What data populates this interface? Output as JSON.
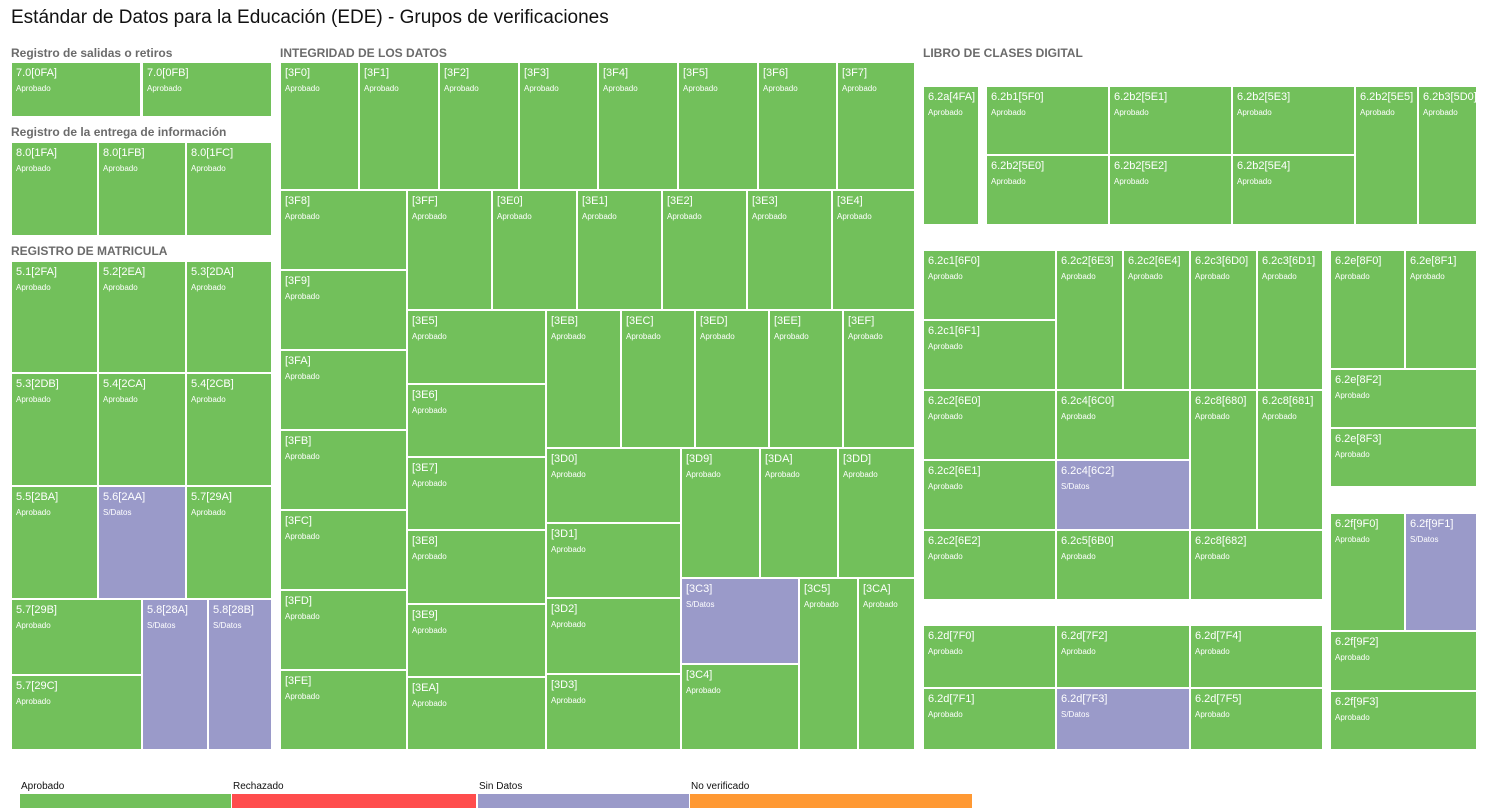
{
  "title": "Estándar de Datos para la Educación (EDE) - Grupos de verificaciones",
  "colors": {
    "Aprobado": "#72c05b",
    "Rechazado": "#ff4d4d",
    "Sin Datos": "#9a9ac9",
    "No verificado": "#ff9933"
  },
  "sections": {
    "salidas": "Registro de salidas o retiros",
    "entrega": "Registro de la entrega de información",
    "matricula": "REGISTRO DE MATRICULA",
    "integridad": "INTEGRIDAD DE LOS DATOS",
    "libro": "LIBRO DE CLASES DIGITAL"
  },
  "legend": [
    {
      "label": "Aprobado",
      "color": "#72c05b"
    },
    {
      "label": "Rechazado",
      "color": "#ff4d4d"
    },
    {
      "label": "Sin Datos",
      "color": "#9a9ac9"
    },
    {
      "label": "No verificado",
      "color": "#ff9933"
    }
  ],
  "chart_data": {
    "type": "treemap",
    "title": "Estándar de Datos para la Educación (EDE) - Grupos de verificaciones",
    "groups": [
      {
        "name": "Registro de salidas o retiros",
        "items": [
          {
            "id": "7.0[0FA]",
            "status": "Aprobado"
          },
          {
            "id": "7.0[0FB]",
            "status": "Aprobado"
          }
        ]
      },
      {
        "name": "Registro de la entrega de información",
        "items": [
          {
            "id": "8.0[1FA]",
            "status": "Aprobado"
          },
          {
            "id": "8.0[1FB]",
            "status": "Aprobado"
          },
          {
            "id": "8.0[1FC]",
            "status": "Aprobado"
          }
        ]
      },
      {
        "name": "REGISTRO DE MATRICULA",
        "items": [
          {
            "id": "5.1[2FA]",
            "status": "Aprobado"
          },
          {
            "id": "5.2[2EA]",
            "status": "Aprobado"
          },
          {
            "id": "5.3[2DA]",
            "status": "Aprobado"
          },
          {
            "id": "5.3[2DB]",
            "status": "Aprobado"
          },
          {
            "id": "5.4[2CA]",
            "status": "Aprobado"
          },
          {
            "id": "5.4[2CB]",
            "status": "Aprobado"
          },
          {
            "id": "5.5[2BA]",
            "status": "Aprobado"
          },
          {
            "id": "5.6[2AA]",
            "status": "S/Datos"
          },
          {
            "id": "5.7[29A]",
            "status": "Aprobado"
          },
          {
            "id": "5.7[29B]",
            "status": "Aprobado"
          },
          {
            "id": "5.8[28A]",
            "status": "S/Datos"
          },
          {
            "id": "5.8[28B]",
            "status": "S/Datos"
          },
          {
            "id": "5.7[29C]",
            "status": "Aprobado"
          }
        ]
      },
      {
        "name": "INTEGRIDAD DE LOS DATOS",
        "items": [
          {
            "id": "[3F0]",
            "status": "Aprobado"
          },
          {
            "id": "[3F1]",
            "status": "Aprobado"
          },
          {
            "id": "[3F2]",
            "status": "Aprobado"
          },
          {
            "id": "[3F3]",
            "status": "Aprobado"
          },
          {
            "id": "[3F4]",
            "status": "Aprobado"
          },
          {
            "id": "[3F5]",
            "status": "Aprobado"
          },
          {
            "id": "[3F6]",
            "status": "Aprobado"
          },
          {
            "id": "[3F7]",
            "status": "Aprobado"
          },
          {
            "id": "[3F8]",
            "status": "Aprobado"
          },
          {
            "id": "[3F9]",
            "status": "Aprobado"
          },
          {
            "id": "[3FA]",
            "status": "Aprobado"
          },
          {
            "id": "[3FB]",
            "status": "Aprobado"
          },
          {
            "id": "[3FC]",
            "status": "Aprobado"
          },
          {
            "id": "[3FD]",
            "status": "Aprobado"
          },
          {
            "id": "[3FE]",
            "status": "Aprobado"
          },
          {
            "id": "[3FF]",
            "status": "Aprobado"
          },
          {
            "id": "[3E0]",
            "status": "Aprobado"
          },
          {
            "id": "[3E1]",
            "status": "Aprobado"
          },
          {
            "id": "[3E2]",
            "status": "Aprobado"
          },
          {
            "id": "[3E3]",
            "status": "Aprobado"
          },
          {
            "id": "[3E4]",
            "status": "Aprobado"
          },
          {
            "id": "[3E5]",
            "status": "Aprobado"
          },
          {
            "id": "[3E6]",
            "status": "Aprobado"
          },
          {
            "id": "[3E7]",
            "status": "Aprobado"
          },
          {
            "id": "[3E8]",
            "status": "Aprobado"
          },
          {
            "id": "[3E9]",
            "status": "Aprobado"
          },
          {
            "id": "[3EA]",
            "status": "Aprobado"
          },
          {
            "id": "[3EB]",
            "status": "Aprobado"
          },
          {
            "id": "[3EC]",
            "status": "Aprobado"
          },
          {
            "id": "[3ED]",
            "status": "Aprobado"
          },
          {
            "id": "[3EE]",
            "status": "Aprobado"
          },
          {
            "id": "[3EF]",
            "status": "Aprobado"
          },
          {
            "id": "[3D0]",
            "status": "Aprobado"
          },
          {
            "id": "[3D1]",
            "status": "Aprobado"
          },
          {
            "id": "[3D2]",
            "status": "Aprobado"
          },
          {
            "id": "[3D3]",
            "status": "Aprobado"
          },
          {
            "id": "[3D9]",
            "status": "Aprobado"
          },
          {
            "id": "[3DA]",
            "status": "Aprobado"
          },
          {
            "id": "[3DD]",
            "status": "Aprobado"
          },
          {
            "id": "[3C3]",
            "status": "S/Datos"
          },
          {
            "id": "[3C4]",
            "status": "Aprobado"
          },
          {
            "id": "[3C5]",
            "status": "Aprobado"
          },
          {
            "id": "[3CA]",
            "status": "Aprobado"
          }
        ]
      },
      {
        "name": "LIBRO DE CLASES DIGITAL",
        "items": [
          {
            "id": "6.2a[4FA]",
            "status": "Aprobado"
          },
          {
            "id": "6.2b1[5F0]",
            "status": "Aprobado"
          },
          {
            "id": "6.2b2[5E1]",
            "status": "Aprobado"
          },
          {
            "id": "6.2b2[5E3]",
            "status": "Aprobado"
          },
          {
            "id": "6.2b2[5E5]",
            "status": "Aprobado"
          },
          {
            "id": "6.2b3[5D0]",
            "status": "Aprobado"
          },
          {
            "id": "6.2b2[5E0]",
            "status": "Aprobado"
          },
          {
            "id": "6.2b2[5E2]",
            "status": "Aprobado"
          },
          {
            "id": "6.2b2[5E4]",
            "status": "Aprobado"
          },
          {
            "id": "6.2c1[6F0]",
            "status": "Aprobado"
          },
          {
            "id": "6.2c1[6F1]",
            "status": "Aprobado"
          },
          {
            "id": "6.2c2[6E3]",
            "status": "Aprobado"
          },
          {
            "id": "6.2c2[6E4]",
            "status": "Aprobado"
          },
          {
            "id": "6.2c3[6D0]",
            "status": "Aprobado"
          },
          {
            "id": "6.2c3[6D1]",
            "status": "Aprobado"
          },
          {
            "id": "6.2c2[6E0]",
            "status": "Aprobado"
          },
          {
            "id": "6.2c4[6C0]",
            "status": "Aprobado"
          },
          {
            "id": "6.2c8[680]",
            "status": "Aprobado"
          },
          {
            "id": "6.2c8[681]",
            "status": "Aprobado"
          },
          {
            "id": "6.2c2[6E1]",
            "status": "Aprobado"
          },
          {
            "id": "6.2c4[6C2]",
            "status": "S/Datos"
          },
          {
            "id": "6.2c2[6E2]",
            "status": "Aprobado"
          },
          {
            "id": "6.2c5[6B0]",
            "status": "Aprobado"
          },
          {
            "id": "6.2c8[682]",
            "status": "Aprobado"
          },
          {
            "id": "6.2e[8F0]",
            "status": "Aprobado"
          },
          {
            "id": "6.2e[8F1]",
            "status": "Aprobado"
          },
          {
            "id": "6.2e[8F2]",
            "status": "Aprobado"
          },
          {
            "id": "6.2e[8F3]",
            "status": "Aprobado"
          },
          {
            "id": "6.2f[9F0]",
            "status": "Aprobado"
          },
          {
            "id": "6.2f[9F1]",
            "status": "S/Datos"
          },
          {
            "id": "6.2f[9F2]",
            "status": "Aprobado"
          },
          {
            "id": "6.2f[9F3]",
            "status": "Aprobado"
          },
          {
            "id": "6.2d[7F0]",
            "status": "Aprobado"
          },
          {
            "id": "6.2d[7F2]",
            "status": "Aprobado"
          },
          {
            "id": "6.2d[7F4]",
            "status": "Aprobado"
          },
          {
            "id": "6.2d[7F1]",
            "status": "Aprobado"
          },
          {
            "id": "6.2d[7F3]",
            "status": "S/Datos"
          },
          {
            "id": "6.2d[7F5]",
            "status": "Aprobado"
          }
        ]
      }
    ]
  }
}
